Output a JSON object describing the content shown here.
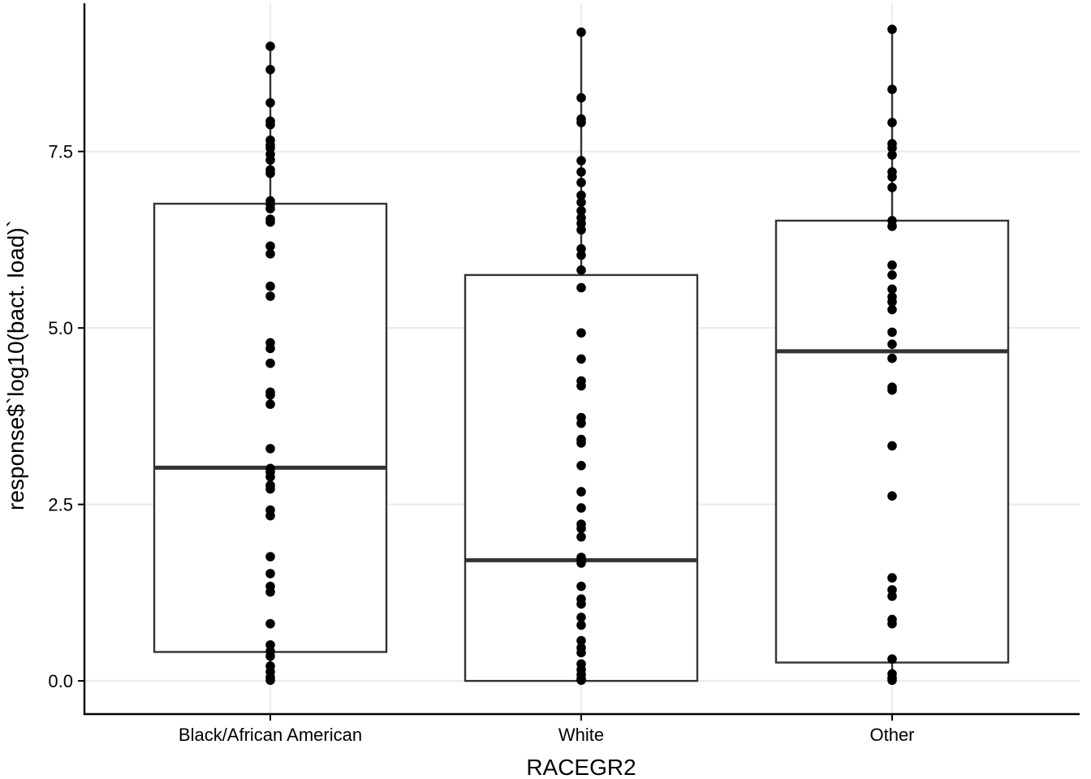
{
  "chart_data": {
    "type": "box",
    "xlabel": "RACEGR2",
    "ylabel": "response$`log10(bact. load)`",
    "categories": [
      "Black/African American",
      "White",
      "Other"
    ],
    "ylim": [
      -0.47,
      9.6
    ],
    "yticks": [
      0.0,
      2.5,
      5.0,
      7.5
    ],
    "ytick_labels": [
      "0.0",
      "2.5",
      "5.0",
      "7.5"
    ],
    "grid": true,
    "boxes": [
      {
        "category": "Black/African American",
        "lower_whisker": 0.0,
        "q1": 0.41,
        "median": 3.02,
        "q3": 6.76,
        "upper_whisker": 8.99
      },
      {
        "category": "White",
        "lower_whisker": 0.0,
        "q1": 0.0,
        "median": 1.71,
        "q3": 5.75,
        "upper_whisker": 9.19
      },
      {
        "category": "Other",
        "lower_whisker": 0.0,
        "q1": 0.26,
        "median": 4.67,
        "q3": 6.52,
        "upper_whisker": 9.23
      }
    ],
    "points": [
      {
        "category": "Black/African American",
        "values": [
          8.99,
          8.66,
          8.19,
          7.93,
          7.88,
          7.66,
          7.59,
          7.55,
          7.46,
          7.38,
          7.24,
          7.19,
          6.8,
          6.75,
          6.69,
          6.54,
          6.5,
          6.16,
          6.05,
          5.59,
          5.45,
          4.79,
          4.71,
          4.5,
          4.09,
          4.05,
          3.92,
          3.29,
          3.01,
          2.96,
          2.89,
          2.77,
          2.72,
          2.42,
          2.34,
          1.76,
          1.52,
          1.34,
          1.26,
          0.81,
          0.51,
          0.42,
          0.35,
          0.21,
          0.13,
          0.05,
          0.01
        ]
      },
      {
        "category": "White",
        "values": [
          9.19,
          8.26,
          7.96,
          7.91,
          7.37,
          7.21,
          7.06,
          6.88,
          6.78,
          6.66,
          6.56,
          6.48,
          6.39,
          6.12,
          6.03,
          5.82,
          5.57,
          4.93,
          4.56,
          4.25,
          4.18,
          3.73,
          3.65,
          3.42,
          3.37,
          3.05,
          2.68,
          2.45,
          2.22,
          2.16,
          2.04,
          1.75,
          1.7,
          1.67,
          1.34,
          1.16,
          1.09,
          0.9,
          0.79,
          0.57,
          0.47,
          0.4,
          0.24,
          0.16,
          0.09,
          0.03,
          0.01
        ]
      },
      {
        "category": "Other",
        "values": [
          9.23,
          8.38,
          7.91,
          7.61,
          7.55,
          7.45,
          7.21,
          7.14,
          6.99,
          6.52,
          6.44,
          5.89,
          5.75,
          5.55,
          5.44,
          5.37,
          5.26,
          4.94,
          4.77,
          4.57,
          4.16,
          4.12,
          3.33,
          2.62,
          1.46,
          1.29,
          1.2,
          0.87,
          0.81,
          0.31,
          0.1,
          0.04,
          0.01
        ]
      }
    ]
  }
}
